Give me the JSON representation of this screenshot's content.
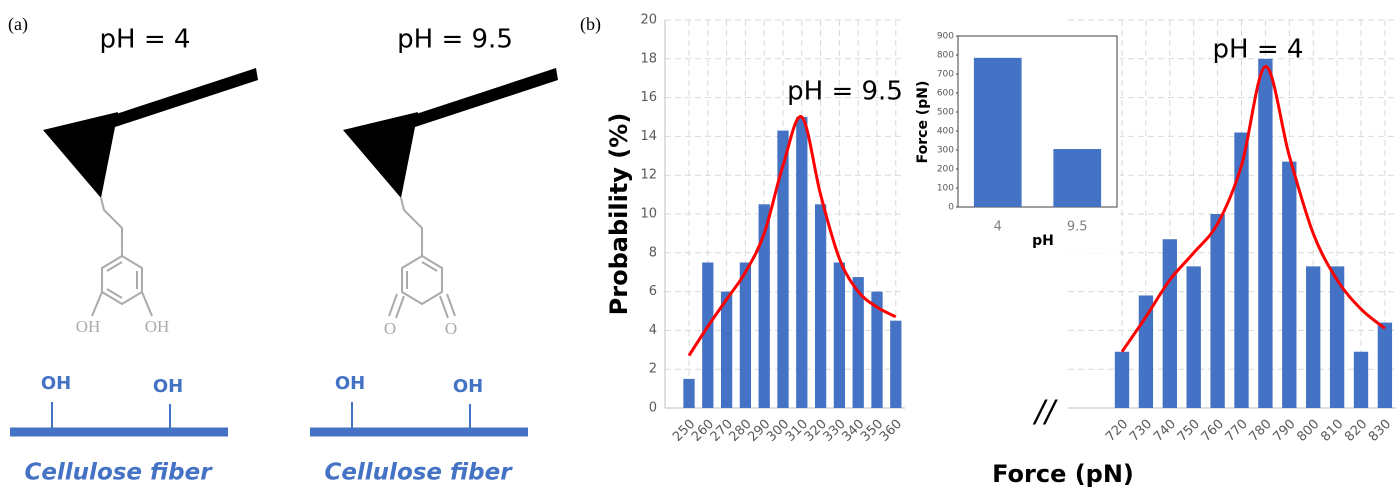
{
  "panel_a": {
    "label": "(a)",
    "left": {
      "title": "pH = 4",
      "molecule": [
        "OH",
        "OH"
      ],
      "surface": [
        "OH",
        "OH"
      ],
      "caption": "Cellulose fiber"
    },
    "right": {
      "title": "pH = 9.5",
      "molecule": [
        "O",
        "O"
      ],
      "surface": [
        "OH",
        "OH"
      ],
      "caption": "Cellulose fiber"
    }
  },
  "chart_data": [
    {
      "type": "bar",
      "panel_label": "(b)",
      "ylabel": "Probability (%)",
      "xlabel": "Force (pN)",
      "ylim": [
        0,
        20
      ],
      "yticks": [
        0,
        2,
        4,
        6,
        8,
        10,
        12,
        14,
        16,
        18,
        20
      ],
      "grid": true,
      "bar_color": "#4472c4",
      "fit_color": "#ff0000",
      "break_label": "//",
      "segments": [
        {
          "annotation": "pH = 9.5",
          "categories": [
            250,
            260,
            270,
            280,
            290,
            300,
            310,
            320,
            330,
            340,
            350,
            360
          ],
          "values": [
            1.5,
            7.5,
            6,
            7.5,
            10.5,
            14.3,
            15,
            10.5,
            7.5,
            6.75,
            6,
            4.5
          ],
          "fit": [
            2.7,
            4.2,
            5.6,
            7.0,
            9.0,
            12.5,
            15,
            11,
            7.7,
            6.0,
            5.2,
            4.7
          ]
        },
        {
          "annotation": "pH = 4",
          "categories": [
            720,
            730,
            740,
            750,
            760,
            770,
            780,
            790,
            800,
            810,
            820,
            830
          ],
          "values": [
            2.9,
            5.8,
            8.7,
            7.3,
            10,
            14.2,
            18,
            12.7,
            7.3,
            7.3,
            2.9,
            4.4
          ],
          "fit": [
            2.9,
            4.7,
            6.6,
            8.0,
            9.5,
            12.5,
            17.6,
            13,
            9,
            6.6,
            5.1,
            4.1
          ]
        }
      ]
    },
    {
      "type": "bar",
      "inset": true,
      "ylabel": "Force (pN)",
      "xlabel": "pH",
      "categories": [
        "4",
        "9.5"
      ],
      "values": [
        785,
        305
      ],
      "color": "#4472c4",
      "ylim": [
        0,
        900
      ],
      "yticks": [
        0,
        100,
        200,
        300,
        400,
        500,
        600,
        700,
        800,
        900
      ]
    }
  ]
}
